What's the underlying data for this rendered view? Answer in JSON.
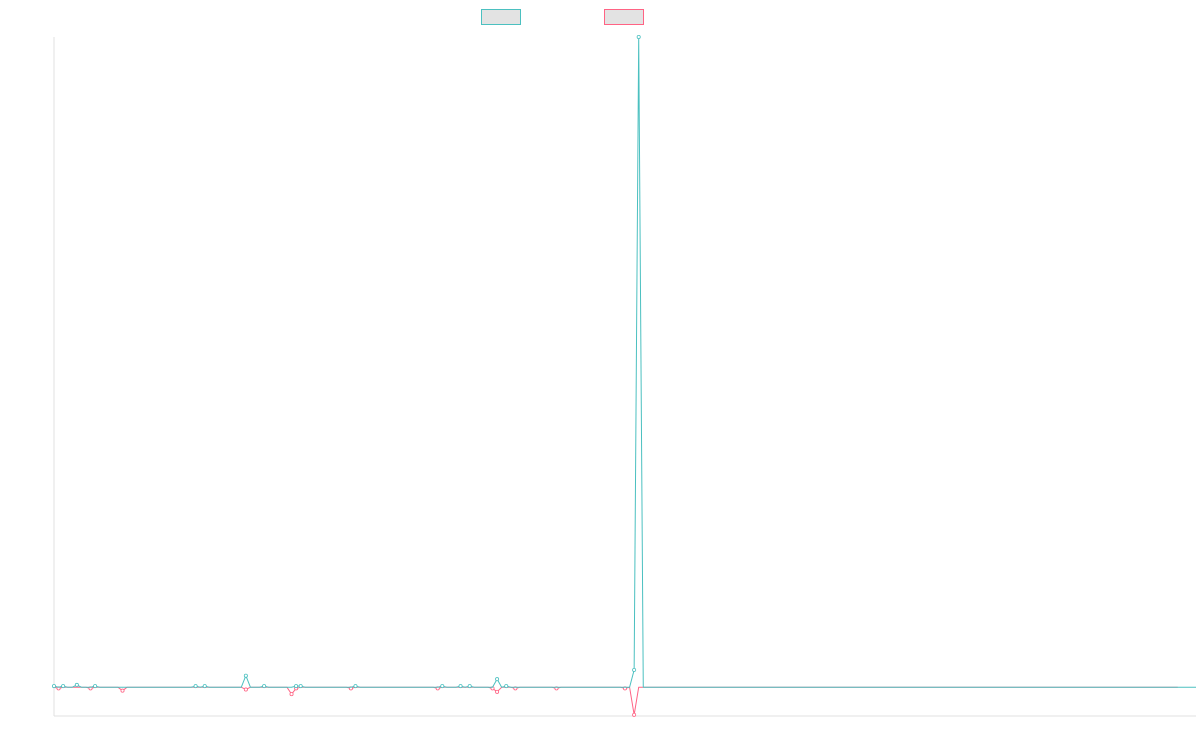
{
  "chart_data": {
    "type": "line",
    "title": "",
    "xlabel": "",
    "ylabel": "",
    "grid": false,
    "legend_position": "top",
    "ylim": [
      -25,
      565
    ],
    "series": [
      {
        "name": "",
        "color": "#4bc0c0",
        "values": [
          1,
          0,
          1,
          0,
          0,
          2,
          0,
          0,
          0,
          1,
          0,
          0,
          0,
          0,
          0,
          0,
          0,
          0,
          0,
          0,
          0,
          0,
          0,
          0,
          0,
          0,
          0,
          0,
          0,
          0,
          0,
          1,
          0,
          1,
          0,
          0,
          0,
          0,
          0,
          0,
          0,
          0,
          10,
          0,
          0,
          0,
          1,
          0,
          0,
          0,
          0,
          0,
          0,
          1,
          1,
          0,
          0,
          0,
          0,
          0,
          0,
          0,
          0,
          0,
          0,
          0,
          1,
          0,
          0,
          0,
          0,
          0,
          0,
          0,
          0,
          0,
          0,
          0,
          0,
          0,
          0,
          0,
          0,
          0,
          0,
          1,
          0,
          0,
          0,
          1,
          0,
          1,
          0,
          0,
          0,
          0,
          0,
          7,
          0,
          1,
          0,
          0,
          0,
          0,
          0,
          0,
          0,
          0,
          0,
          0,
          0,
          0,
          0,
          0,
          0,
          0,
          0,
          0,
          0,
          0,
          0,
          0,
          0,
          0,
          0,
          0,
          0,
          15,
          565,
          0,
          0,
          0,
          0,
          0,
          0,
          0,
          0,
          0,
          0,
          0,
          0,
          0,
          0,
          0,
          0,
          0,
          0,
          0,
          0,
          0,
          0,
          0,
          0,
          0,
          0,
          0,
          0,
          0,
          0,
          0,
          0,
          0,
          0,
          0,
          0,
          0,
          0,
          0,
          0,
          0,
          0,
          0,
          0,
          0,
          0,
          0,
          0,
          0,
          0,
          0,
          0,
          0,
          0,
          0,
          0,
          0,
          0,
          0,
          0,
          0,
          0,
          0,
          0,
          0,
          0,
          0,
          0,
          0,
          0,
          0,
          0,
          0,
          0,
          0,
          0,
          0,
          0,
          0,
          0,
          0,
          0,
          0,
          0,
          0,
          0,
          0,
          0,
          0,
          0,
          0,
          0,
          0,
          0,
          0,
          0,
          0,
          0,
          0,
          0,
          0,
          0,
          0,
          0,
          0,
          0,
          0,
          0,
          0,
          0,
          0,
          0,
          0,
          0,
          0,
          0,
          0,
          0,
          0,
          0,
          0,
          0
        ]
      },
      {
        "name": "",
        "color": "#ff6384",
        "values": [
          0,
          -1,
          0,
          0,
          0,
          0,
          0,
          0,
          -1,
          0,
          0,
          0,
          0,
          0,
          0,
          -3,
          0,
          0,
          0,
          0,
          0,
          0,
          0,
          0,
          0,
          0,
          0,
          0,
          0,
          0,
          0,
          0,
          0,
          0,
          0,
          0,
          0,
          0,
          0,
          0,
          0,
          0,
          -2,
          0,
          0,
          0,
          0,
          0,
          0,
          0,
          0,
          0,
          -6,
          -1,
          0,
          0,
          0,
          0,
          0,
          0,
          0,
          0,
          0,
          0,
          0,
          -1,
          0,
          0,
          0,
          0,
          0,
          0,
          0,
          0,
          0,
          0,
          0,
          0,
          0,
          0,
          0,
          0,
          0,
          0,
          -1,
          0,
          0,
          0,
          0,
          0,
          0,
          0,
          0,
          0,
          0,
          0,
          -1,
          -4,
          0,
          0,
          0,
          -1,
          0,
          0,
          0,
          0,
          0,
          0,
          0,
          0,
          -1,
          0,
          0,
          0,
          0,
          0,
          0,
          0,
          0,
          0,
          0,
          0,
          0,
          0,
          0,
          -1,
          0,
          -24,
          0,
          0,
          0,
          0,
          0,
          0,
          0,
          0,
          0,
          0,
          0,
          0,
          0,
          0,
          0,
          0,
          0,
          0,
          0,
          0,
          0,
          0,
          0,
          0,
          0,
          0,
          0,
          0,
          0,
          0,
          0,
          0,
          0,
          0,
          0,
          0,
          0,
          0,
          0,
          0,
          0,
          0,
          0,
          0,
          0,
          0,
          0,
          0,
          0,
          0,
          0,
          0,
          0,
          0,
          0,
          0,
          0,
          0,
          0,
          0,
          0,
          0,
          0,
          0,
          0,
          0,
          0,
          0,
          0,
          0,
          0,
          0,
          0,
          0,
          0,
          0,
          0,
          0,
          0,
          0,
          0,
          0,
          0,
          0,
          0,
          0,
          0,
          0,
          0,
          0,
          0,
          0,
          0,
          0,
          0,
          0,
          0,
          0,
          0,
          0,
          0,
          0,
          0,
          0,
          0,
          0,
          0,
          0,
          0,
          0,
          0,
          0,
          0,
          0,
          0,
          0,
          0,
          0,
          0
        ]
      }
    ]
  }
}
